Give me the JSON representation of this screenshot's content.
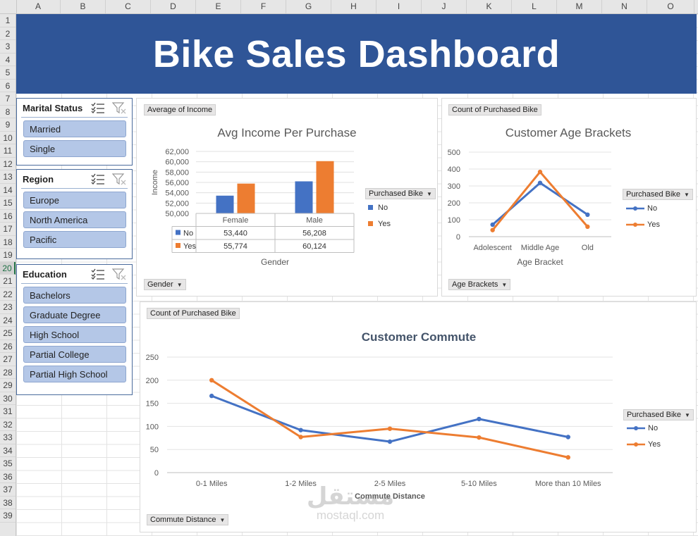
{
  "sheet": {
    "columns": [
      "A",
      "B",
      "C",
      "D",
      "E",
      "F",
      "G",
      "H",
      "I",
      "J",
      "K",
      "L",
      "M",
      "N",
      "O"
    ],
    "rows": [
      "1",
      "2",
      "3",
      "4",
      "5",
      "6",
      "7",
      "8",
      "9",
      "10",
      "11",
      "12",
      "13",
      "14",
      "15",
      "16",
      "17",
      "18",
      "19",
      "20",
      "21",
      "22",
      "23",
      "24",
      "25",
      "26",
      "27",
      "28",
      "29",
      "30",
      "31",
      "32",
      "33",
      "34",
      "35",
      "36",
      "37",
      "38",
      "39"
    ],
    "selected_row": "20"
  },
  "banner": {
    "title": "Bike Sales Dashboard",
    "bg_color": "#2f5597"
  },
  "slicers": {
    "marital": {
      "title": "Marital Status",
      "items": [
        "Married",
        "Single"
      ]
    },
    "region": {
      "title": "Region",
      "items": [
        "Europe",
        "North America",
        "Pacific"
      ]
    },
    "education": {
      "title": "Education",
      "items": [
        "Bachelors",
        "Graduate Degree",
        "High School",
        "Partial College",
        "Partial High School"
      ]
    },
    "icons": [
      "multi-select-icon",
      "clear-filter-icon"
    ]
  },
  "colors": {
    "no": "#4472c4",
    "yes": "#ed7d31"
  },
  "chart_data": [
    {
      "type": "bar",
      "field_value": "Average of Income",
      "title": "Avg Income Per Purchase",
      "xlabel": "Gender",
      "ylabel": "Income",
      "axis_field": "Gender",
      "legend_field": "Purchased Bike",
      "legend_position": "right",
      "categories": [
        "Female",
        "Male"
      ],
      "ylim": [
        50000,
        62000
      ],
      "yticks": [
        "62,000",
        "60,000",
        "58,000",
        "56,000",
        "54,000",
        "52,000",
        "50,000"
      ],
      "series": [
        {
          "name": "No",
          "values": [
            53440,
            56208
          ],
          "labels": [
            "53,440",
            "56,208"
          ]
        },
        {
          "name": "Yes",
          "values": [
            55774,
            60124
          ],
          "labels": [
            "55,774",
            "60,124"
          ]
        }
      ]
    },
    {
      "type": "line",
      "field_value": "Count of Purchased Bike",
      "title": "Customer Age Brackets",
      "xlabel": "Age Bracket",
      "axis_field": "Age Brackets",
      "legend_field": "Purchased Bike",
      "legend_position": "right",
      "categories": [
        "Adolescent",
        "Middle Age",
        "Old"
      ],
      "ylim": [
        0,
        500
      ],
      "yticks": [
        "500",
        "400",
        "300",
        "200",
        "100",
        "0"
      ],
      "series": [
        {
          "name": "No",
          "values": [
            71,
            318,
            130
          ]
        },
        {
          "name": "Yes",
          "values": [
            39,
            383,
            59
          ]
        }
      ]
    },
    {
      "type": "line",
      "field_value": "Count of Purchased Bike",
      "title": "Customer Commute",
      "xlabel": "Commute Distance",
      "axis_field": "Commute Distance",
      "legend_field": "Purchased Bike",
      "legend_position": "right",
      "categories": [
        "0-1 Miles",
        "1-2 Miles",
        "2-5 Miles",
        "5-10 Miles",
        "More than 10 Miles"
      ],
      "ylim": [
        0,
        250
      ],
      "yticks": [
        "250",
        "200",
        "150",
        "100",
        "50",
        "0"
      ],
      "series": [
        {
          "name": "No",
          "values": [
            166,
            92,
            67,
            116,
            77
          ]
        },
        {
          "name": "Yes",
          "values": [
            200,
            77,
            95,
            76,
            33
          ]
        }
      ]
    }
  ],
  "watermark": {
    "logo": "مستقل",
    "url": "mostaql.com"
  }
}
